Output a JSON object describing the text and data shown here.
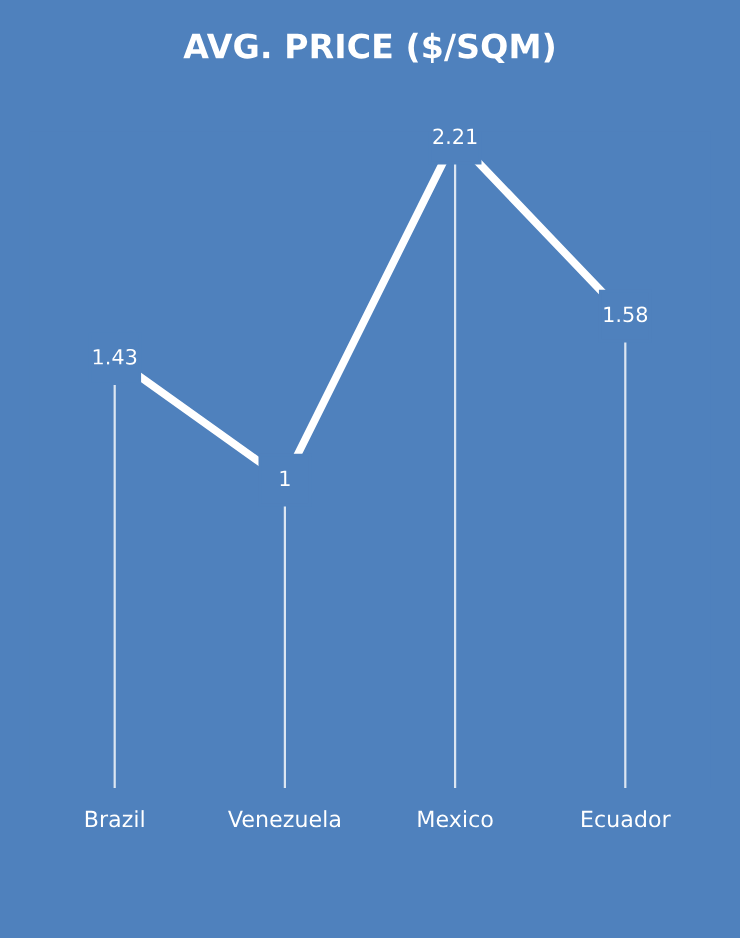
{
  "chart_data": {
    "type": "line",
    "title": "AVG. PRICE ($/SQM)",
    "categories": [
      "Brazil",
      "Venezuela",
      "Mexico",
      "Ecuador"
    ],
    "series": [
      {
        "color": "#ffffff",
        "values": [
          1.43,
          1,
          2.21,
          1.58
        ]
      }
    ],
    "data_labels": true,
    "grid": "x",
    "legend": false,
    "marker": "square",
    "line_style": "solid"
  }
}
